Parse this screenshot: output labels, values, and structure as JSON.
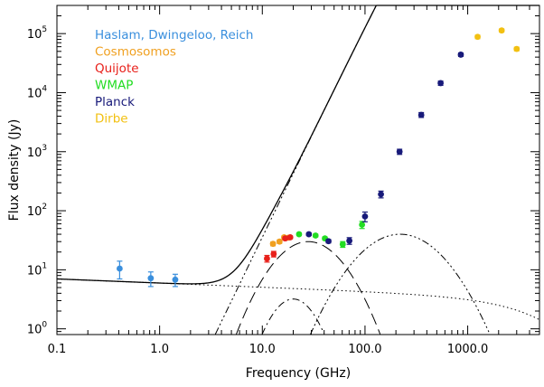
{
  "chart_data": {
    "type": "scatter",
    "xlabel": "Frequency (GHz)",
    "ylabel": "Flux density (Jy)",
    "x_scale": "log",
    "y_scale": "log",
    "xlim": [
      0.1,
      5000
    ],
    "ylim": [
      0.8,
      300000
    ],
    "x_ticks": [
      {
        "value": 0.1,
        "label": "0.1"
      },
      {
        "value": 1,
        "label": "1.0"
      },
      {
        "value": 10,
        "label": "10.0"
      },
      {
        "value": 100,
        "label": "100.0"
      },
      {
        "value": 1000,
        "label": "1000.0"
      }
    ],
    "y_ticks": [
      {
        "value": 1,
        "base": "10",
        "exp": "0"
      },
      {
        "value": 10,
        "base": "10",
        "exp": "1"
      },
      {
        "value": 100,
        "base": "10",
        "exp": "2"
      },
      {
        "value": 1000,
        "base": "10",
        "exp": "3"
      },
      {
        "value": 10000,
        "base": "10",
        "exp": "4"
      },
      {
        "value": 100000,
        "base": "10",
        "exp": "5"
      }
    ],
    "legend_position": "top-left",
    "series": [
      {
        "name": "Haslam, Dwingeloo, Reich",
        "color": "#3a8fdd",
        "points": [
          [
            0.408,
            10.5,
            3.5
          ],
          [
            0.82,
            7.2,
            2.0
          ],
          [
            1.42,
            6.8,
            1.6
          ]
        ]
      },
      {
        "name": "Cosmosomos",
        "color": "#f0a020",
        "points": [
          [
            12.7,
            27.5,
            2.0
          ],
          [
            14.7,
            30.0,
            2.0
          ],
          [
            16.3,
            35.5,
            2.0
          ],
          [
            17.9,
            35.0,
            2.0
          ]
        ]
      },
      {
        "name": "Quijote",
        "color": "#e8201a",
        "points": [
          [
            11.1,
            15.5,
            2.0
          ],
          [
            12.9,
            18.5,
            2.0
          ],
          [
            16.7,
            34.0,
            2.0
          ],
          [
            18.7,
            35.5,
            2.0
          ]
        ]
      },
      {
        "name": "WMAP",
        "color": "#22dd22",
        "points": [
          [
            22.8,
            40.0,
            2.0
          ],
          [
            33.0,
            38.0,
            2.0
          ],
          [
            40.7,
            34.0,
            2.0
          ],
          [
            60.7,
            27.0,
            3.0
          ],
          [
            93.5,
            58.0,
            8.0
          ]
        ]
      },
      {
        "name": "Planck",
        "color": "#181a7a",
        "points": [
          [
            28.4,
            40.0,
            2.0
          ],
          [
            44.1,
            30.5,
            2.0
          ],
          [
            70.4,
            31.0,
            4.0
          ],
          [
            100,
            80.0,
            15.0
          ],
          [
            143,
            190.0,
            25.0
          ],
          [
            217,
            1000.0,
            100.0
          ],
          [
            353,
            4200.0,
            400.0
          ],
          [
            545,
            14500.0,
            1200.0
          ],
          [
            857,
            44000.0,
            3000.0
          ]
        ]
      },
      {
        "name": "Dirbe",
        "color": "#f2c011",
        "points": [
          [
            1249,
            88000.0,
            6000.0
          ],
          [
            2141,
            113000.0,
            7000.0
          ],
          [
            2998,
            55000.0,
            4000.0
          ]
        ]
      }
    ],
    "model_curves": [
      {
        "name": "total",
        "style": "solid"
      },
      {
        "name": "synchrotron",
        "style": "dotted"
      },
      {
        "name": "anomalous-microwave-emission-1",
        "style": "long-dash"
      },
      {
        "name": "anomalous-microwave-emission-2",
        "style": "dash-dot"
      },
      {
        "name": "free-free",
        "style": "dash-dot-dot-dot"
      },
      {
        "name": "thermal-dust",
        "style": "dash-dot-dot-dot"
      }
    ]
  }
}
